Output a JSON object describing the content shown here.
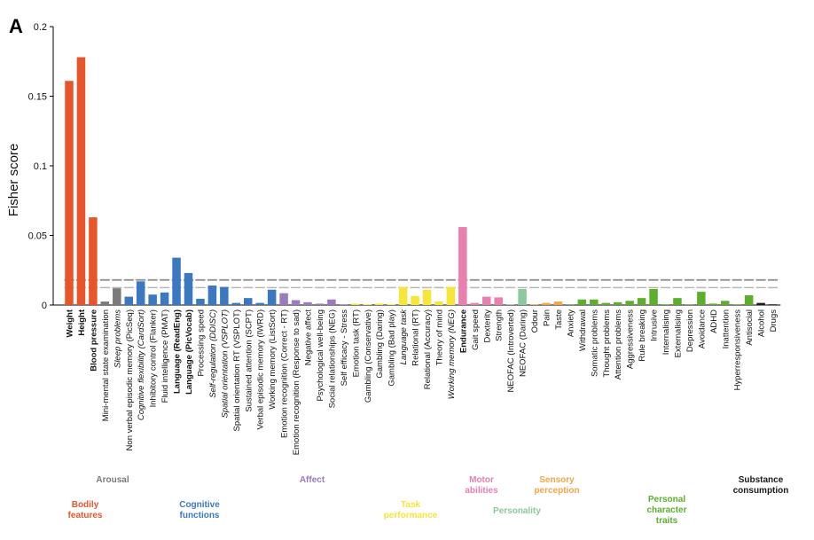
{
  "panel_letter": "A",
  "chart_data": {
    "type": "bar",
    "ylabel": "Fisher score",
    "xlabel": "",
    "ylim": [
      0,
      0.2
    ],
    "yticks": [
      0,
      0.05,
      0.1,
      0.15,
      0.2
    ],
    "ytick_labels": [
      "0",
      "0.05",
      "0.1",
      "0.15",
      "0.2"
    ],
    "threshold_lines": {
      "upper": 0.018,
      "lower": 0.0125,
      "upper_color": "#8c8c8c",
      "lower_color": "#b4b4b4"
    },
    "groups": [
      {
        "key": "bodily",
        "name": "Bodily\nfeatures",
        "color": "#e8552b"
      },
      {
        "key": "arousal",
        "name": "Arousal",
        "color": "#7a7a7a"
      },
      {
        "key": "cognitive",
        "name": "Cognitive\nfunctions",
        "color": "#3b78c0"
      },
      {
        "key": "affect",
        "name": "Affect",
        "color": "#9a7bbf"
      },
      {
        "key": "task",
        "name": "Task\nperformance",
        "color": "#f6e53a"
      },
      {
        "key": "motor",
        "name": "Motor\nabilities",
        "color": "#e97fae"
      },
      {
        "key": "personality",
        "name": "Personality",
        "color": "#8bc99a"
      },
      {
        "key": "sensory",
        "name": "Sensory\nperception",
        "color": "#f5a548"
      },
      {
        "key": "character",
        "name": "Personal\ncharacter\ntraits",
        "color": "#5caf2d"
      },
      {
        "key": "substance",
        "name": "Substance\nconsumption",
        "color": "#1a1a1a"
      }
    ],
    "categories": [
      {
        "label": "Weight",
        "value": 0.161,
        "group": "bodily",
        "style": "bold"
      },
      {
        "label": "Height",
        "value": 0.178,
        "group": "bodily",
        "style": "bold"
      },
      {
        "label": "Blood pressure",
        "value": 0.063,
        "group": "bodily",
        "style": "bold"
      },
      {
        "label": "Mini-mental state examination",
        "value": 0.0025,
        "group": "arousal",
        "style": "normal"
      },
      {
        "label": "Sleep problems",
        "value": 0.012,
        "group": "arousal",
        "style": "italic"
      },
      {
        "label": "Non verbal episodic memory (PicSeq)",
        "value": 0.006,
        "group": "cognitive",
        "style": "normal"
      },
      {
        "label": "Cognitive flexibility (CardSort)",
        "value": 0.017,
        "group": "cognitive",
        "style": "italic"
      },
      {
        "label": "Inhibitory control (Flanker)",
        "value": 0.0075,
        "group": "cognitive",
        "style": "normal"
      },
      {
        "label": "Fluid intelligence (PMAT)",
        "value": 0.009,
        "group": "cognitive",
        "style": "normal"
      },
      {
        "label": "Language (ReadEng)",
        "value": 0.034,
        "group": "cognitive",
        "style": "bold"
      },
      {
        "label": "Language (PicVocab)",
        "value": 0.023,
        "group": "cognitive",
        "style": "bold"
      },
      {
        "label": "Processing speed",
        "value": 0.0045,
        "group": "cognitive",
        "style": "normal"
      },
      {
        "label": "Self-regulation (DDISC)",
        "value": 0.014,
        "group": "cognitive",
        "style": "italic"
      },
      {
        "label": "Spatial orientation (VSPLOT)",
        "value": 0.013,
        "group": "cognitive",
        "style": "italic"
      },
      {
        "label": "Spatial orientation RT (VSPLOT)",
        "value": 0.0015,
        "group": "cognitive",
        "style": "normal"
      },
      {
        "label": "Sustained attention (SCPT)",
        "value": 0.005,
        "group": "cognitive",
        "style": "normal"
      },
      {
        "label": "Verbal episodic memory (IWRD)",
        "value": 0.0015,
        "group": "cognitive",
        "style": "normal"
      },
      {
        "label": "Working memory (ListSort)",
        "value": 0.011,
        "group": "cognitive",
        "style": "normal"
      },
      {
        "label": "Emotion recognition (Correct - RT)",
        "value": 0.0085,
        "group": "affect",
        "style": "normal"
      },
      {
        "label": "Emotion recognition (Response to sad)",
        "value": 0.0035,
        "group": "affect",
        "style": "normal"
      },
      {
        "label": "Negative affect",
        "value": 0.002,
        "group": "affect",
        "style": "normal"
      },
      {
        "label": "Psychological well-being",
        "value": 0.001,
        "group": "affect",
        "style": "normal"
      },
      {
        "label": "Social relationships (NEG)",
        "value": 0.004,
        "group": "affect",
        "style": "normal"
      },
      {
        "label": "Self efficacy - Stress",
        "value": 0.0005,
        "group": "affect",
        "style": "normal"
      },
      {
        "label": "Emotion task (RT)",
        "value": 0.001,
        "group": "task",
        "style": "normal"
      },
      {
        "label": "Gambling (Conservative)",
        "value": 0.0005,
        "group": "task",
        "style": "normal"
      },
      {
        "label": "Gambling (Daring)",
        "value": 0.001,
        "group": "task",
        "style": "normal"
      },
      {
        "label": "Gambling (Bad play)",
        "value": 0.0005,
        "group": "task",
        "style": "normal"
      },
      {
        "label": "Language task",
        "value": 0.013,
        "group": "task",
        "style": "italic"
      },
      {
        "label": "Relational (RT)",
        "value": 0.0065,
        "group": "task",
        "style": "normal"
      },
      {
        "label": "Relational (Accuracy)",
        "value": 0.011,
        "group": "task",
        "style": "normal"
      },
      {
        "label": "Theory of mind",
        "value": 0.0025,
        "group": "task",
        "style": "normal"
      },
      {
        "label": "Working memory (NEG)",
        "value": 0.013,
        "group": "task",
        "style": "italic"
      },
      {
        "label": "Endurance",
        "value": 0.056,
        "group": "motor",
        "style": "bold"
      },
      {
        "label": "Gait speed",
        "value": 0.0015,
        "group": "motor",
        "style": "normal"
      },
      {
        "label": "Dexterity",
        "value": 0.006,
        "group": "motor",
        "style": "normal"
      },
      {
        "label": "Strength",
        "value": 0.0055,
        "group": "motor",
        "style": "normal"
      },
      {
        "label": "NEOFAC (Introverted)",
        "value": 0.0005,
        "group": "personality",
        "style": "normal"
      },
      {
        "label": "NEOFAC (Daring)",
        "value": 0.0115,
        "group": "personality",
        "style": "normal"
      },
      {
        "label": "Odour",
        "value": 0.0005,
        "group": "sensory",
        "style": "normal"
      },
      {
        "label": "Pain",
        "value": 0.0015,
        "group": "sensory",
        "style": "normal"
      },
      {
        "label": "Taste",
        "value": 0.0025,
        "group": "sensory",
        "style": "normal"
      },
      {
        "label": "Anxiety",
        "value": 0.0005,
        "group": "character",
        "style": "normal"
      },
      {
        "label": "Withdrawal",
        "value": 0.004,
        "group": "character",
        "style": "normal"
      },
      {
        "label": "Somatic problems",
        "value": 0.004,
        "group": "character",
        "style": "normal"
      },
      {
        "label": "Thought problems",
        "value": 0.0015,
        "group": "character",
        "style": "normal"
      },
      {
        "label": "Attention problems",
        "value": 0.002,
        "group": "character",
        "style": "normal"
      },
      {
        "label": "Aggressiveness",
        "value": 0.003,
        "group": "character",
        "style": "normal"
      },
      {
        "label": "Rule breaking",
        "value": 0.005,
        "group": "character",
        "style": "normal"
      },
      {
        "label": "Intrusive",
        "value": 0.0115,
        "group": "character",
        "style": "normal"
      },
      {
        "label": "Internalising",
        "value": 0.0005,
        "group": "character",
        "style": "normal"
      },
      {
        "label": "Externalising",
        "value": 0.005,
        "group": "character",
        "style": "normal"
      },
      {
        "label": "Depression",
        "value": 0.0005,
        "group": "character",
        "style": "normal"
      },
      {
        "label": "Avoidance",
        "value": 0.0095,
        "group": "character",
        "style": "normal"
      },
      {
        "label": "ADHD",
        "value": 0.001,
        "group": "character",
        "style": "normal"
      },
      {
        "label": "Inattention",
        "value": 0.003,
        "group": "character",
        "style": "normal"
      },
      {
        "label": "Hyperresponsiveness",
        "value": 0.0005,
        "group": "character",
        "style": "normal"
      },
      {
        "label": "Antisocial",
        "value": 0.007,
        "group": "character",
        "style": "normal"
      },
      {
        "label": "Alcohol",
        "value": 0.0015,
        "group": "substance",
        "style": "normal"
      },
      {
        "label": "Drugs",
        "value": 0.0005,
        "group": "substance",
        "style": "normal"
      }
    ]
  }
}
